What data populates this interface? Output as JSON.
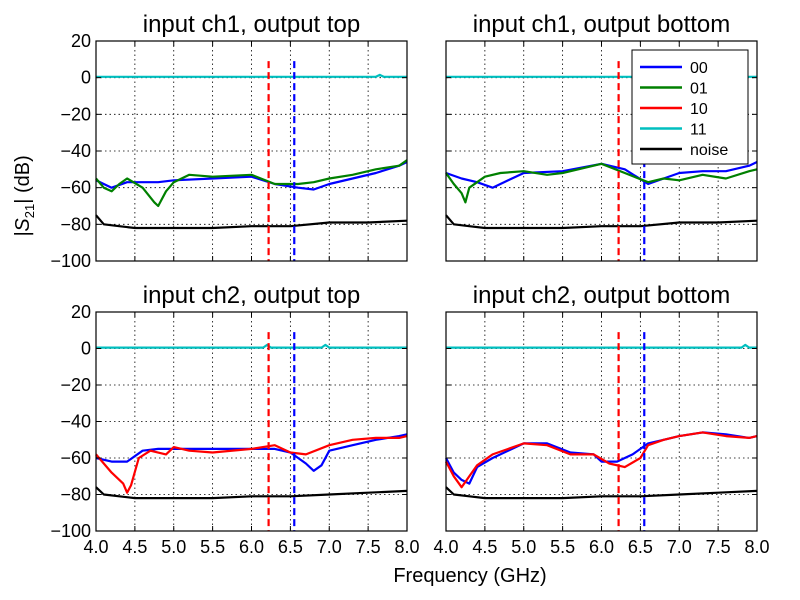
{
  "figure": {
    "xlabel": "Frequency (GHz)",
    "ylabel_main": "|S",
    "ylabel_sub": "21",
    "ylabel_tail": "| (dB)"
  },
  "colors": {
    "00": "#0000ff",
    "01": "#008000",
    "10": "#ff0000",
    "11": "#00bfbf",
    "noise": "#000000",
    "marker_red": "#ff0000",
    "marker_blue": "#0000ff"
  },
  "legend": {
    "placement": "top-right of the upper-right panel",
    "entries": [
      {
        "key": "00",
        "label": "00"
      },
      {
        "key": "01",
        "label": "01"
      },
      {
        "key": "10",
        "label": "10"
      },
      {
        "key": "11",
        "label": "11"
      },
      {
        "key": "noise",
        "label": "noise"
      }
    ]
  },
  "chart_data": [
    {
      "type": "line",
      "title": "input ch1, output top",
      "xlim": [
        4.0,
        8.0
      ],
      "ylim": [
        -100,
        20
      ],
      "grid": true,
      "x_ticks": [
        "4.0",
        "4.5",
        "5.0",
        "5.5",
        "6.0",
        "6.5",
        "7.0",
        "7.5",
        "8.0"
      ],
      "y_ticks": [
        "20",
        "0",
        "−20",
        "−40",
        "−60",
        "−80",
        "−100"
      ],
      "show_x_ticklabels": false,
      "show_y_ticklabels": true,
      "vlines": [
        {
          "x": 6.22,
          "color": "red"
        },
        {
          "x": 6.55,
          "color": "blue"
        }
      ],
      "series": [
        {
          "name": "00",
          "x": [
            4.0,
            4.2,
            4.4,
            4.6,
            4.8,
            5.0,
            5.5,
            6.0,
            6.3,
            6.6,
            6.8,
            7.0,
            7.3,
            7.6,
            7.9,
            8.0
          ],
          "y": [
            -56,
            -60,
            -57,
            -57,
            -57,
            -56,
            -55,
            -54,
            -58,
            -60,
            -61,
            -58,
            -55,
            -52,
            -48,
            -46
          ]
        },
        {
          "name": "01",
          "x": [
            4.0,
            4.1,
            4.2,
            4.3,
            4.4,
            4.6,
            4.75,
            4.8,
            4.9,
            5.0,
            5.2,
            5.5,
            6.0,
            6.3,
            6.6,
            6.8,
            7.0,
            7.3,
            7.6,
            7.9,
            8.0
          ],
          "y": [
            -55,
            -60,
            -62,
            -58,
            -55,
            -60,
            -68,
            -70,
            -62,
            -57,
            -53,
            -54,
            -53,
            -58,
            -58,
            -57,
            -55,
            -53,
            -50,
            -48,
            -45
          ]
        },
        {
          "name": "11",
          "x": [
            4.0,
            5.0,
            6.0,
            7.0,
            7.6,
            7.65,
            7.7,
            8.0
          ],
          "y": [
            0.5,
            0.5,
            0.5,
            0.5,
            0.5,
            1.5,
            0.5,
            0.5
          ]
        },
        {
          "name": "noise",
          "x": [
            4.0,
            4.1,
            4.3,
            4.5,
            5.0,
            5.5,
            6.0,
            6.5,
            7.0,
            7.5,
            8.0
          ],
          "y": [
            -75,
            -80,
            -81,
            -82,
            -82,
            -82,
            -81,
            -81,
            -79,
            -79,
            -78
          ]
        }
      ]
    },
    {
      "type": "line",
      "title": "input ch1, output bottom",
      "xlim": [
        4.0,
        8.0
      ],
      "ylim": [
        -100,
        20
      ],
      "grid": true,
      "x_ticks": [
        "4.0",
        "4.5",
        "5.0",
        "5.5",
        "6.0",
        "6.5",
        "7.0",
        "7.5",
        "8.0"
      ],
      "y_ticks": [
        "20",
        "0",
        "−20",
        "−40",
        "−60",
        "−80",
        "−100"
      ],
      "show_x_ticklabels": false,
      "show_y_ticklabels": false,
      "vlines": [
        {
          "x": 6.22,
          "color": "red"
        },
        {
          "x": 6.55,
          "color": "blue"
        }
      ],
      "series": [
        {
          "name": "00",
          "x": [
            4.0,
            4.2,
            4.4,
            4.6,
            4.8,
            5.0,
            5.5,
            6.0,
            6.3,
            6.6,
            6.8,
            7.0,
            7.3,
            7.6,
            7.9,
            8.0
          ],
          "y": [
            -52,
            -55,
            -57,
            -60,
            -56,
            -52,
            -51,
            -47,
            -50,
            -58,
            -55,
            -52,
            -51,
            -51,
            -48,
            -46
          ]
        },
        {
          "name": "01",
          "x": [
            4.0,
            4.1,
            4.2,
            4.25,
            4.3,
            4.5,
            4.7,
            5.0,
            5.3,
            5.5,
            6.0,
            6.3,
            6.6,
            6.8,
            7.0,
            7.3,
            7.6,
            7.9,
            8.0
          ],
          "y": [
            -52,
            -58,
            -63,
            -68,
            -60,
            -54,
            -52,
            -51,
            -53,
            -52,
            -47,
            -52,
            -57,
            -55,
            -56,
            -53,
            -55,
            -51,
            -50
          ]
        },
        {
          "name": "11",
          "x": [
            4.0,
            5.0,
            6.0,
            7.0,
            8.0
          ],
          "y": [
            0.5,
            0.5,
            0.5,
            0.5,
            0.5
          ]
        },
        {
          "name": "noise",
          "x": [
            4.0,
            4.1,
            4.3,
            4.5,
            5.0,
            5.5,
            6.0,
            6.5,
            7.0,
            7.5,
            8.0
          ],
          "y": [
            -75,
            -80,
            -81,
            -82,
            -82,
            -82,
            -81,
            -81,
            -79,
            -79,
            -78
          ]
        }
      ]
    },
    {
      "type": "line",
      "title": "input ch2, output top",
      "xlim": [
        4.0,
        8.0
      ],
      "ylim": [
        -100,
        20
      ],
      "grid": true,
      "x_ticks": [
        "4.0",
        "4.5",
        "5.0",
        "5.5",
        "6.0",
        "6.5",
        "7.0",
        "7.5",
        "8.0"
      ],
      "y_ticks": [
        "20",
        "0",
        "−20",
        "−40",
        "−60",
        "−80",
        "−100"
      ],
      "show_x_ticklabels": true,
      "show_y_ticklabels": true,
      "vlines": [
        {
          "x": 6.22,
          "color": "red"
        },
        {
          "x": 6.55,
          "color": "blue"
        }
      ],
      "series": [
        {
          "name": "00",
          "x": [
            4.0,
            4.2,
            4.4,
            4.6,
            4.8,
            5.0,
            5.5,
            6.0,
            6.3,
            6.5,
            6.7,
            6.8,
            6.9,
            7.0,
            7.3,
            7.6,
            7.9,
            8.0
          ],
          "y": [
            -60,
            -62,
            -62,
            -56,
            -55,
            -55,
            -55,
            -55,
            -55,
            -57,
            -63,
            -67,
            -64,
            -56,
            -53,
            -50,
            -48,
            -47
          ]
        },
        {
          "name": "10",
          "x": [
            4.0,
            4.2,
            4.35,
            4.4,
            4.45,
            4.55,
            4.7,
            4.9,
            5.0,
            5.2,
            5.5,
            6.0,
            6.3,
            6.5,
            6.7,
            7.0,
            7.3,
            7.6,
            7.9,
            8.0
          ],
          "y": [
            -58,
            -68,
            -74,
            -79,
            -75,
            -60,
            -56,
            -58,
            -54,
            -56,
            -57,
            -55,
            -53,
            -57,
            -58,
            -53,
            -50,
            -49,
            -49,
            -48
          ]
        },
        {
          "name": "11",
          "x": [
            4.0,
            5.0,
            6.0,
            6.15,
            6.2,
            6.25,
            6.9,
            6.95,
            7.0,
            8.0
          ],
          "y": [
            0.5,
            0.5,
            0.5,
            0.5,
            2,
            0.5,
            0.5,
            2,
            0.5,
            0.5
          ]
        },
        {
          "name": "noise",
          "x": [
            4.0,
            4.1,
            4.3,
            4.5,
            5.0,
            5.5,
            6.0,
            6.5,
            7.0,
            7.5,
            8.0
          ],
          "y": [
            -76,
            -80,
            -81,
            -82,
            -82,
            -82,
            -81,
            -81,
            -80,
            -79,
            -78
          ]
        }
      ]
    },
    {
      "type": "line",
      "title": "input ch2, output bottom",
      "xlim": [
        4.0,
        8.0
      ],
      "ylim": [
        -100,
        20
      ],
      "grid": true,
      "x_ticks": [
        "4.0",
        "4.5",
        "5.0",
        "5.5",
        "6.0",
        "6.5",
        "7.0",
        "7.5",
        "8.0"
      ],
      "y_ticks": [
        "20",
        "0",
        "−20",
        "−40",
        "−60",
        "−80",
        "−100"
      ],
      "show_x_ticklabels": true,
      "show_y_ticklabels": false,
      "vlines": [
        {
          "x": 6.22,
          "color": "red"
        },
        {
          "x": 6.55,
          "color": "blue"
        }
      ],
      "series": [
        {
          "name": "00",
          "x": [
            4.0,
            4.1,
            4.2,
            4.3,
            4.4,
            4.6,
            5.0,
            5.3,
            5.6,
            5.9,
            6.0,
            6.2,
            6.4,
            6.6,
            6.8,
            7.0,
            7.3,
            7.6,
            7.9,
            8.0
          ],
          "y": [
            -60,
            -68,
            -72,
            -74,
            -65,
            -60,
            -52,
            -52,
            -57,
            -58,
            -62,
            -62,
            -58,
            -52,
            -50,
            -48,
            -46,
            -47,
            -49,
            -48
          ]
        },
        {
          "name": "10",
          "x": [
            4.0,
            4.1,
            4.2,
            4.3,
            4.4,
            4.6,
            5.0,
            5.3,
            5.6,
            5.9,
            6.1,
            6.3,
            6.5,
            6.6,
            6.8,
            7.0,
            7.3,
            7.6,
            7.9,
            8.0
          ],
          "y": [
            -62,
            -70,
            -76,
            -70,
            -64,
            -58,
            -52,
            -53,
            -58,
            -58,
            -63,
            -65,
            -60,
            -53,
            -50,
            -48,
            -46,
            -48,
            -49,
            -48
          ]
        },
        {
          "name": "11",
          "x": [
            4.0,
            5.0,
            6.0,
            7.0,
            7.8,
            7.85,
            7.9,
            8.0
          ],
          "y": [
            0.5,
            0.5,
            0.5,
            0.5,
            0.5,
            2,
            0.5,
            0.5
          ]
        },
        {
          "name": "noise",
          "x": [
            4.0,
            4.1,
            4.3,
            4.5,
            5.0,
            5.5,
            6.0,
            6.5,
            7.0,
            7.5,
            8.0
          ],
          "y": [
            -76,
            -80,
            -81,
            -82,
            -82,
            -82,
            -81,
            -81,
            -80,
            -79,
            -78
          ]
        }
      ]
    }
  ]
}
